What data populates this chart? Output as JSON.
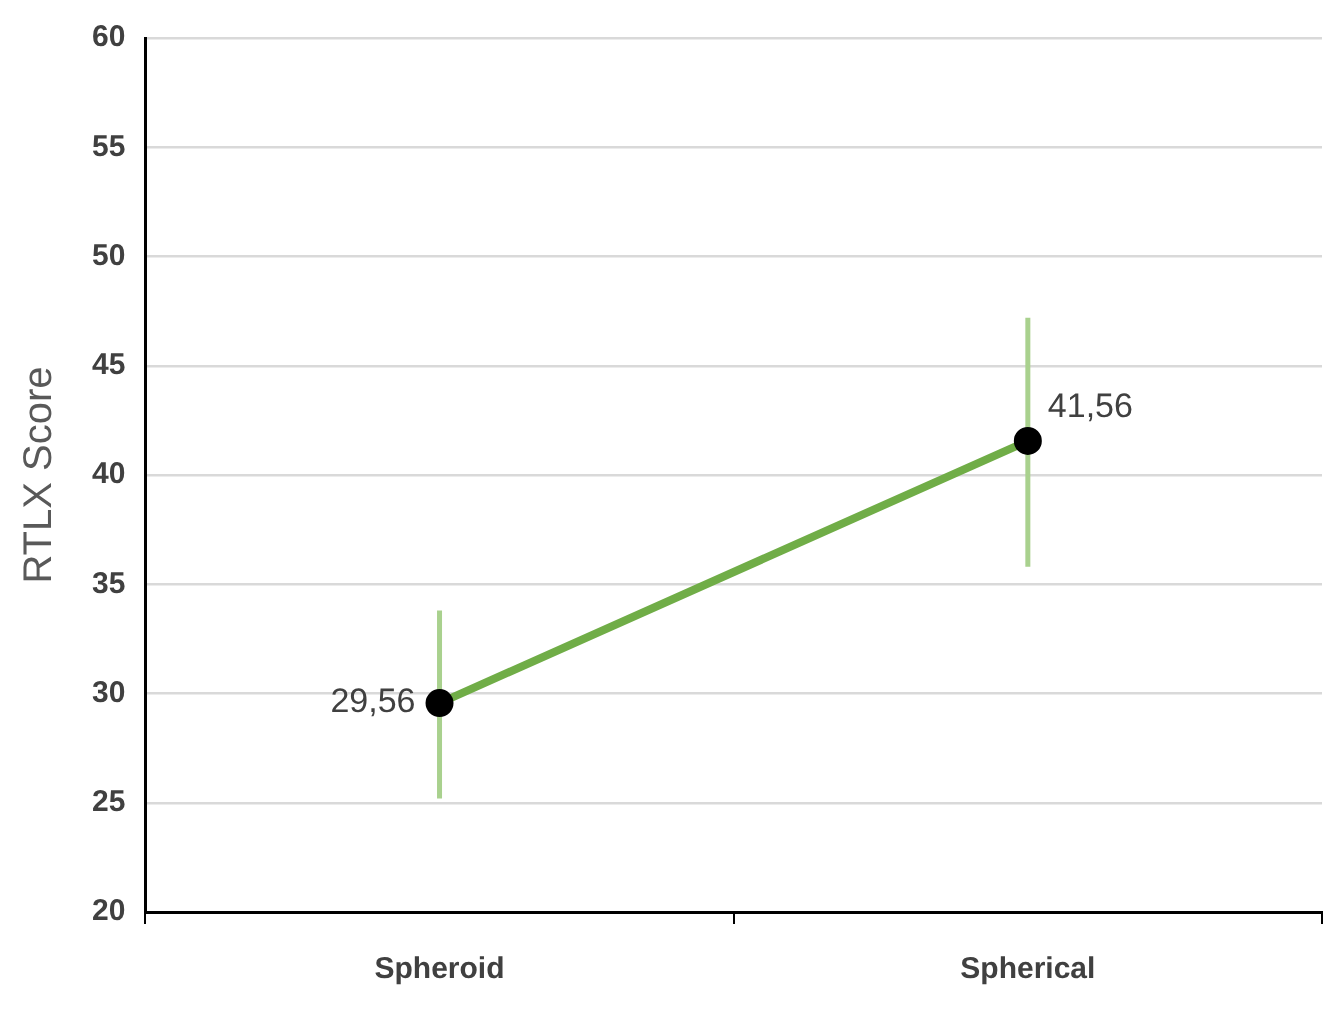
{
  "chart_data": {
    "type": "line",
    "ylabel": "RTLX Score",
    "categories": [
      "Spheroid",
      "Spherical"
    ],
    "series": [
      {
        "color": "#70ad47",
        "values": [
          29.56,
          41.56
        ],
        "errors": [
          [
            25.2,
            33.8
          ],
          [
            35.8,
            47.2
          ]
        ],
        "value_labels": [
          "29,56",
          "41,56"
        ]
      }
    ],
    "ylim": [
      20,
      60
    ],
    "yticks": [
      20,
      25,
      30,
      35,
      40,
      45,
      50,
      55,
      60
    ],
    "grid": "y",
    "legend": false,
    "marker": "circle",
    "line_style": "solid"
  }
}
